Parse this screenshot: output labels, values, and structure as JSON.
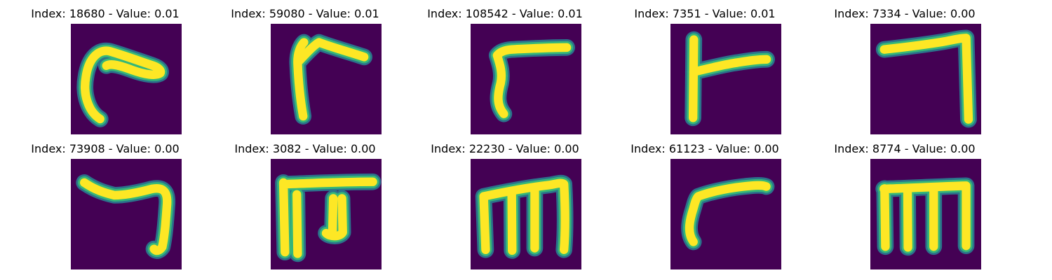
{
  "figure": {
    "colors": {
      "background": "#440154",
      "stroke_core": "#fde725",
      "stroke_edge": "#35b779",
      "stroke_halo": "#2a788e"
    },
    "panels": [
      {
        "index": "18680",
        "value": "0.01",
        "title": "Index: 18680 - Value: 0.01",
        "glyph": "hook"
      },
      {
        "index": "59080",
        "value": "0.01",
        "title": "Index: 59080 - Value: 0.01",
        "glyph": "corner-left"
      },
      {
        "index": "108542",
        "value": "0.01",
        "title": "Index: 108542 - Value: 0.01",
        "glyph": "slant-corner"
      },
      {
        "index": "7351",
        "value": "0.01",
        "title": "Index: 7351 - Value: 0.01",
        "glyph": "tee"
      },
      {
        "index": "7334",
        "value": "0.00",
        "title": "Index: 7334 - Value: 0.00",
        "glyph": "corner-right"
      },
      {
        "index": "73908",
        "value": "0.00",
        "title": "Index: 73908 - Value: 0.00",
        "glyph": "seven"
      },
      {
        "index": "3082",
        "value": "0.00",
        "title": "Index: 3082 - Value: 0.00",
        "glyph": "pi"
      },
      {
        "index": "22230",
        "value": "0.00",
        "title": "Index: 22230 - Value: 0.00",
        "glyph": "m-arch"
      },
      {
        "index": "61123",
        "value": "0.00",
        "title": "Index: 61123 - Value: 0.00",
        "glyph": "corner-thin"
      },
      {
        "index": "8774",
        "value": "0.00",
        "title": "Index: 8774 - Value: 0.00",
        "glyph": "m-flat"
      }
    ]
  }
}
